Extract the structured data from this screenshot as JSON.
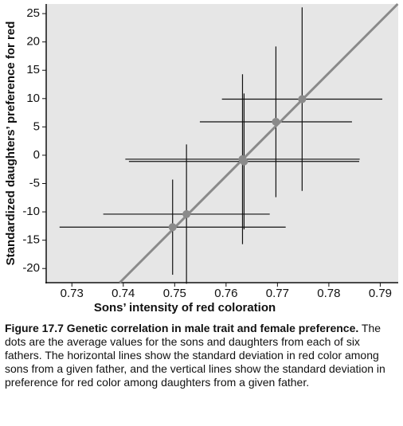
{
  "chart_data": {
    "type": "scatter",
    "x_label": "Sons’ intensity of red coloration",
    "y_label": "Standardized daughters’ preference for red",
    "xlim": [
      0.725,
      0.7935
    ],
    "ylim": [
      -22.5,
      26.7
    ],
    "xticks": [
      0.73,
      0.74,
      0.75,
      0.76,
      0.77,
      0.78,
      0.79
    ],
    "yticks": [
      -20,
      -15,
      -10,
      -5,
      0,
      5,
      10,
      15,
      20,
      25
    ],
    "grid": false,
    "color": "#8a8a8a",
    "error_color": "#111111",
    "x": [
      0.7496,
      0.7523,
      0.7632,
      0.7635,
      0.7697,
      0.7748
    ],
    "y": [
      -12.7,
      -10.4,
      -0.7,
      -1.1,
      5.9,
      9.9
    ],
    "x_error": [
      0.022,
      0.0162,
      0.0228,
      0.0224,
      0.0148,
      0.0156
    ],
    "y_error": [
      8.4,
      12.3,
      15,
      12,
      13.3,
      16.2
    ],
    "fit_line": {
      "x": [
        0.7393,
        0.7934
      ],
      "y": [
        -22.5,
        26.7
      ]
    }
  },
  "caption": {
    "title": "Figure 17.7 Genetic correlation in male trait and female preference.",
    "body": "The dots are the average values for the sons and daughters from each of six fathers. The horizontal lines show the standard deviation in red color among sons from a given father, and the vertical lines show the standard deviation in preference for red color among daughters from a given father."
  }
}
